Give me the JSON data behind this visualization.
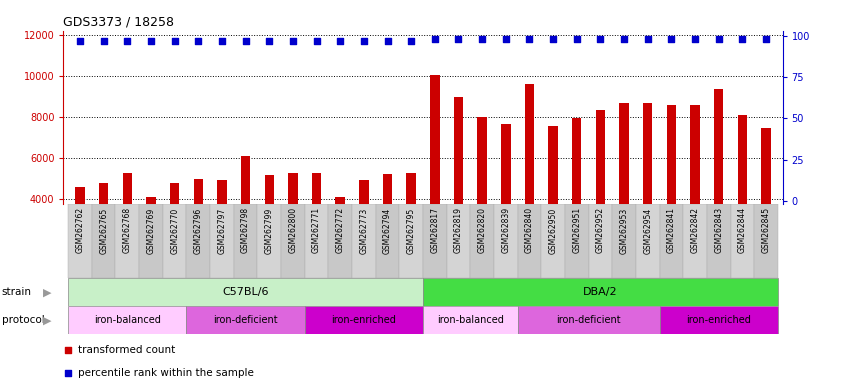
{
  "title": "GDS3373 / 18258",
  "samples": [
    "GSM262762",
    "GSM262765",
    "GSM262768",
    "GSM262769",
    "GSM262770",
    "GSM262796",
    "GSM262797",
    "GSM262798",
    "GSM262799",
    "GSM262800",
    "GSM262771",
    "GSM262772",
    "GSM262773",
    "GSM262794",
    "GSM262795",
    "GSM262817",
    "GSM262819",
    "GSM262820",
    "GSM262839",
    "GSM262840",
    "GSM262950",
    "GSM262951",
    "GSM262952",
    "GSM262953",
    "GSM262954",
    "GSM262841",
    "GSM262842",
    "GSM262843",
    "GSM262844",
    "GSM262845"
  ],
  "bar_values": [
    4600,
    4800,
    5300,
    4100,
    4800,
    5000,
    4950,
    6100,
    5200,
    5300,
    5300,
    4100,
    4950,
    5250,
    5300,
    10050,
    9000,
    8000,
    7650,
    9600,
    7550,
    7950,
    8350,
    8700,
    8700,
    8600,
    8600,
    9350,
    8100,
    7450
  ],
  "percentile_values": [
    97,
    97,
    97,
    97,
    97,
    97,
    97,
    97,
    97,
    97,
    97,
    97,
    97,
    97,
    97,
    98,
    98,
    98,
    98,
    98,
    98,
    98,
    98,
    98,
    98,
    98,
    98,
    98,
    98,
    98
  ],
  "bar_color": "#cc0000",
  "percentile_color": "#0000cc",
  "ylim_left": [
    3800,
    12200
  ],
  "ylim_right": [
    -1.5,
    103
  ],
  "yticks_left": [
    4000,
    6000,
    8000,
    10000,
    12000
  ],
  "yticks_right": [
    0,
    25,
    50,
    75,
    100
  ],
  "strain_groups": [
    {
      "label": "C57BL/6",
      "start": 0,
      "end": 14,
      "color": "#c8f0c8"
    },
    {
      "label": "DBA/2",
      "start": 15,
      "end": 29,
      "color": "#44dd44"
    }
  ],
  "protocol_groups": [
    {
      "label": "iron-balanced",
      "start": 0,
      "end": 4,
      "color": "#ffccff"
    },
    {
      "label": "iron-deficient",
      "start": 5,
      "end": 9,
      "color": "#dd66dd"
    },
    {
      "label": "iron-enriched",
      "start": 10,
      "end": 14,
      "color": "#cc00cc"
    },
    {
      "label": "iron-balanced",
      "start": 15,
      "end": 18,
      "color": "#ffccff"
    },
    {
      "label": "iron-deficient",
      "start": 19,
      "end": 24,
      "color": "#dd66dd"
    },
    {
      "label": "iron-enriched",
      "start": 25,
      "end": 29,
      "color": "#cc00cc"
    }
  ],
  "legend_items": [
    {
      "label": "transformed count",
      "color": "#cc0000"
    },
    {
      "label": "percentile rank within the sample",
      "color": "#0000cc"
    }
  ],
  "strain_label": "strain",
  "protocol_label": "protocol",
  "xtick_bg_color": "#d4d4d4",
  "arrow_color": "#999999"
}
